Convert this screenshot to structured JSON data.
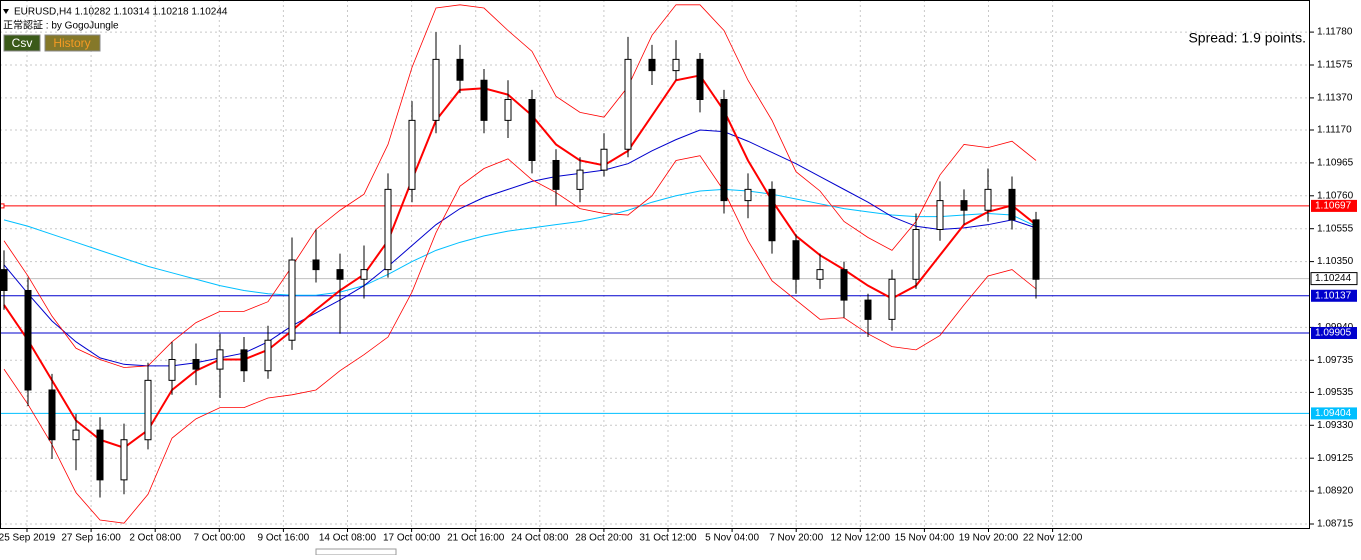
{
  "chart_data": {
    "type": "candlestick",
    "title": "EURUSD,H4  1.10282 1.10314 1.10218 1.10244",
    "subtitle": "正常認証 : by GogoJungle",
    "buttons": [
      "Csv",
      "History"
    ],
    "spread": "Spread: 1.9 points.",
    "ylim": [
      1.0869,
      1.1198
    ],
    "yticks": [
      {
        "value": 1.1178,
        "label": "1.11780"
      },
      {
        "value": 1.11575,
        "label": "1.11575"
      },
      {
        "value": 1.1137,
        "label": "1.11370"
      },
      {
        "value": 1.1117,
        "label": "1.11170"
      },
      {
        "value": 1.10965,
        "label": "1.10965"
      },
      {
        "value": 1.1076,
        "label": "1.10760"
      },
      {
        "value": 1.10555,
        "label": "1.10555"
      },
      {
        "value": 1.1035,
        "label": "1.10350"
      },
      {
        "value": 1.0994,
        "label": "1.09940"
      },
      {
        "value": 1.09735,
        "label": "1.09735"
      },
      {
        "value": 1.09535,
        "label": "1.09535"
      },
      {
        "value": 1.0933,
        "label": "1.09330"
      },
      {
        "value": 1.09125,
        "label": "1.09125"
      },
      {
        "value": 1.0892,
        "label": "1.08920"
      },
      {
        "value": 1.08715,
        "label": "1.08715"
      }
    ],
    "grid": true,
    "x_labels": [
      "25 Sep 2019",
      "27 Sep 16:00",
      "2 Oct 08:00",
      "7 Oct 00:00",
      "9 Oct 16:00",
      "14 Oct 08:00",
      "17 Oct 00:00",
      "21 Oct 16:00",
      "24 Oct 08:00",
      "28 Oct 20:00",
      "31 Oct 12:00",
      "5 Nov 04:00",
      "7 Nov 20:00",
      "12 Nov 12:00",
      "15 Nov 04:00",
      "19 Nov 20:00",
      "22 Nov 12:00"
    ],
    "open": [
      1.103,
      1.1017,
      1.0955,
      1.0924,
      1.093,
      1.0899,
      1.0924,
      1.0961,
      1.0974,
      1.0968,
      1.098,
      1.0967,
      1.0986,
      1.1036,
      1.103,
      1.1024,
      1.103,
      1.108,
      1.1123,
      1.1161,
      1.1148,
      1.1123,
      1.1136,
      1.1098,
      1.108,
      1.1092,
      1.1105,
      1.1161,
      1.1154,
      1.1161,
      1.1136,
      1.1073,
      1.108,
      1.1048,
      1.1024,
      1.103,
      1.1011,
      1.0999,
      1.1024,
      1.1055,
      1.1073,
      1.1067,
      1.108,
      1.1061
    ],
    "high": [
      1.1042,
      1.1025,
      1.0965,
      1.094,
      1.0938,
      1.0934,
      1.0972,
      1.0985,
      1.0984,
      1.099,
      1.0988,
      1.0995,
      1.105,
      1.1055,
      1.104,
      1.1045,
      1.109,
      1.1135,
      1.1178,
      1.117,
      1.1155,
      1.1148,
      1.1142,
      1.1105,
      1.11,
      1.1115,
      1.1175,
      1.117,
      1.1173,
      1.1165,
      1.1142,
      1.109,
      1.1085,
      1.1052,
      1.104,
      1.1035,
      1.1015,
      1.103,
      1.1065,
      1.1085,
      1.108,
      1.1093,
      1.1088,
      1.1066
    ],
    "low": [
      1.1005,
      1.0945,
      1.0912,
      1.0905,
      1.0888,
      1.089,
      1.0918,
      1.0952,
      1.0958,
      1.095,
      1.096,
      1.0962,
      1.098,
      1.1022,
      1.099,
      1.1012,
      1.1025,
      1.1072,
      1.1115,
      1.114,
      1.1115,
      1.1112,
      1.109,
      1.107,
      1.1072,
      1.1088,
      1.11,
      1.1145,
      1.1148,
      1.1128,
      1.1065,
      1.1062,
      1.104,
      1.1015,
      1.1018,
      1.1,
      1.0988,
      1.0992,
      1.1018,
      1.1048,
      1.1058,
      1.106,
      1.1055,
      1.1012
    ],
    "close": [
      1.1017,
      1.0955,
      1.0924,
      1.093,
      1.0899,
      1.0924,
      1.0961,
      1.0974,
      1.0968,
      1.098,
      1.0967,
      1.0986,
      1.1036,
      1.103,
      1.1024,
      1.103,
      1.108,
      1.1123,
      1.1161,
      1.1148,
      1.1123,
      1.1136,
      1.1098,
      1.108,
      1.1092,
      1.1105,
      1.1161,
      1.1154,
      1.1161,
      1.1136,
      1.1073,
      1.108,
      1.1048,
      1.1024,
      1.103,
      1.1011,
      1.0999,
      1.1024,
      1.1055,
      1.1073,
      1.1067,
      1.108,
      1.1061,
      1.1024
    ],
    "series": [
      {
        "color": "#00bfff",
        "width": 1,
        "values": [
          1.1061,
          1.1057,
          1.1052,
          1.1047,
          1.1042,
          1.1037,
          1.1032,
          1.1028,
          1.1024,
          1.102,
          1.1017,
          1.1015,
          1.1014,
          1.1014,
          1.1016,
          1.102,
          1.1027,
          1.1035,
          1.1042,
          1.1047,
          1.1051,
          1.1054,
          1.1056,
          1.1058,
          1.106,
          1.1063,
          1.1067,
          1.1072,
          1.1076,
          1.1079,
          1.108,
          1.1079,
          1.1077,
          1.1074,
          1.1071,
          1.1068,
          1.1066,
          1.1064,
          1.1063,
          1.1063,
          1.1064,
          1.1065,
          1.1064,
          1.1057
        ]
      },
      {
        "color": "#0000cd",
        "width": 1,
        "values": [
          1.1033,
          1.1015,
          1.0998,
          1.0985,
          1.0975,
          1.0971,
          1.097,
          1.097,
          1.0972,
          1.0975,
          1.0978,
          1.0985,
          1.0995,
          1.1003,
          1.1011,
          1.102,
          1.1032,
          1.1045,
          1.1058,
          1.1068,
          1.1075,
          1.108,
          1.1085,
          1.1088,
          1.109,
          1.1092,
          1.1096,
          1.1104,
          1.1111,
          1.1117,
          1.1116,
          1.111,
          1.1103,
          1.1096,
          1.1088,
          1.108,
          1.1072,
          1.1063,
          1.1057,
          1.1055,
          1.1056,
          1.1058,
          1.1061,
          1.1056
        ]
      },
      {
        "color": "#ff0000",
        "width": 0.8,
        "values": [
          1.1048,
          1.1026,
          1.1001,
          1.0981,
          1.0974,
          1.0969,
          1.097,
          1.0985,
          1.0997,
          1.1004,
          1.1004,
          1.101,
          1.1032,
          1.1055,
          1.1067,
          1.1077,
          1.1108,
          1.1156,
          1.1193,
          1.1195,
          1.1193,
          1.1179,
          1.1166,
          1.1138,
          1.1128,
          1.1125,
          1.1144,
          1.1176,
          1.1195,
          1.1195,
          1.1179,
          1.1148,
          1.1123,
          1.1091,
          1.1079,
          1.106,
          1.105,
          1.1042,
          1.106,
          1.1089,
          1.1108,
          1.1106,
          1.111,
          1.1098
        ]
      },
      {
        "color": "#ff0000",
        "width": 0.8,
        "values": [
          1.0968,
          1.0946,
          1.0921,
          1.0891,
          1.0874,
          1.0872,
          1.089,
          1.0925,
          1.0937,
          1.0944,
          1.0944,
          1.095,
          1.0952,
          1.0955,
          1.0967,
          1.0977,
          1.0988,
          1.1016,
          1.1053,
          1.1082,
          1.1093,
          1.1099,
          1.1086,
          1.1078,
          1.1068,
          1.1065,
          1.1064,
          1.1076,
          1.1098,
          1.1101,
          1.1079,
          1.1048,
          1.1023,
          1.1011,
          1.0999,
          1.1,
          1.099,
          1.0982,
          1.098,
          1.0989,
          1.1008,
          1.1026,
          1.103,
          1.1018
        ]
      },
      {
        "color": "#ff0000",
        "width": 2,
        "values": [
          1.1008,
          1.0986,
          1.0961,
          1.0936,
          1.0924,
          1.0919,
          1.093,
          1.0955,
          1.0967,
          1.0974,
          1.0974,
          1.098,
          1.0992,
          1.1005,
          1.1017,
          1.1027,
          1.1048,
          1.1086,
          1.1123,
          1.1142,
          1.1143,
          1.1139,
          1.1126,
          1.1108,
          1.1098,
          1.1095,
          1.1104,
          1.1126,
          1.1148,
          1.1151,
          1.1129,
          1.1098,
          1.1073,
          1.1051,
          1.1039,
          1.103,
          1.102,
          1.1012,
          1.102,
          1.1039,
          1.1058,
          1.1066,
          1.107,
          1.1058
        ]
      }
    ],
    "levels": [
      {
        "value": 1.10697,
        "color": "#ff0000"
      },
      {
        "value": 1.10137,
        "color": "#0000cd"
      },
      {
        "value": 1.09905,
        "color": "#0000cd"
      },
      {
        "value": 1.09404,
        "color": "#00bfff"
      }
    ],
    "current": 1.10244
  }
}
